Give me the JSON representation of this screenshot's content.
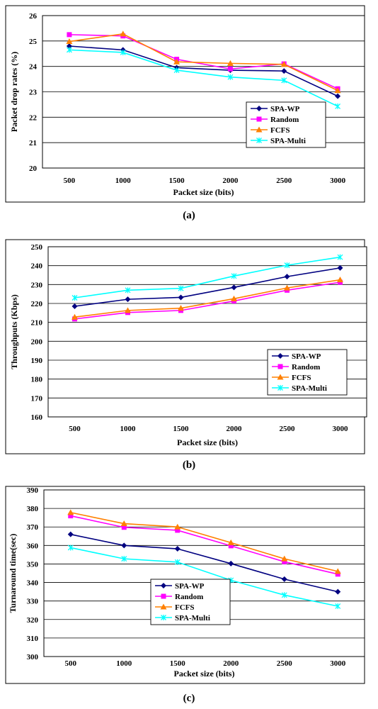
{
  "colors": {
    "SPA-WP": "#000080",
    "Random": "#ff00ff",
    "FCFS": "#ff8000",
    "SPA-Multi": "#00ffff"
  },
  "chart_data": [
    {
      "type": "line",
      "caption": "(a)",
      "title": "",
      "xlabel": "Packet size (bits)",
      "ylabel": "Packet drop rates (%)",
      "categories": [
        "500",
        "1000",
        "1500",
        "2000",
        "2500",
        "3000"
      ],
      "ylim": [
        20,
        26
      ],
      "yticks": [
        "20",
        "21",
        "22",
        "23",
        "24",
        "25",
        "26"
      ],
      "grid": "horizontal",
      "legend_position": "bottom-right",
      "series": [
        {
          "name": "SPA-WP",
          "marker": "diamond",
          "values": [
            24.8,
            24.65,
            23.95,
            23.85,
            23.82,
            22.83
          ]
        },
        {
          "name": "Random",
          "marker": "square",
          "values": [
            25.25,
            25.2,
            24.28,
            23.9,
            24.1,
            23.12
          ]
        },
        {
          "name": "FCFS",
          "marker": "triangle",
          "values": [
            24.98,
            25.28,
            24.18,
            24.12,
            24.08,
            23.05
          ]
        },
        {
          "name": "SPA-Multi",
          "marker": "x",
          "values": [
            24.65,
            24.55,
            23.85,
            23.58,
            23.45,
            22.43
          ]
        }
      ]
    },
    {
      "type": "line",
      "caption": "(b)",
      "title": "",
      "xlabel": "Packet size (bits)",
      "ylabel": "Throughputs (Kbps)",
      "categories": [
        "500",
        "1000",
        "1500",
        "2000",
        "2500",
        "3000"
      ],
      "ylim": [
        160,
        250
      ],
      "yticks": [
        "160",
        "170",
        "180",
        "190",
        "200",
        "210",
        "220",
        "230",
        "240",
        "250"
      ],
      "grid": "horizontal",
      "legend_position": "bottom-right",
      "series": [
        {
          "name": "SPA-WP",
          "marker": "diamond",
          "values": [
            218.5,
            222.2,
            223.2,
            228.5,
            234.2,
            238.8
          ]
        },
        {
          "name": "Random",
          "marker": "square",
          "values": [
            211.8,
            215.2,
            216.3,
            221.3,
            227.0,
            231.2
          ]
        },
        {
          "name": "FCFS",
          "marker": "triangle",
          "values": [
            212.8,
            216.3,
            217.5,
            222.5,
            228.2,
            232.5
          ]
        },
        {
          "name": "SPA-Multi",
          "marker": "x",
          "values": [
            223.0,
            227.0,
            228.0,
            234.5,
            240.2,
            244.5
          ]
        }
      ]
    },
    {
      "type": "line",
      "caption": "(c)",
      "title": "",
      "xlabel": "Packet size (bits)",
      "ylabel": "Turnaround time(sec)",
      "categories": [
        "500",
        "1000",
        "1500",
        "2000",
        "2500",
        "3000"
      ],
      "ylim": [
        300,
        390
      ],
      "yticks": [
        "300",
        "310",
        "320",
        "330",
        "340",
        "350",
        "360",
        "370",
        "380",
        "390"
      ],
      "grid": "horizontal",
      "legend_position": "bottom-left",
      "series": [
        {
          "name": "SPA-WP",
          "marker": "diamond",
          "values": [
            366.0,
            360.0,
            358.2,
            350.2,
            341.8,
            335.0
          ]
        },
        {
          "name": "Random",
          "marker": "square",
          "values": [
            376.0,
            369.8,
            368.2,
            359.8,
            351.2,
            344.5
          ]
        },
        {
          "name": "FCFS",
          "marker": "triangle",
          "values": [
            377.8,
            371.8,
            370.0,
            361.5,
            352.8,
            346.0
          ]
        },
        {
          "name": "SPA-Multi",
          "marker": "x",
          "values": [
            358.8,
            352.8,
            351.0,
            341.2,
            333.2,
            327.2
          ]
        }
      ]
    }
  ]
}
